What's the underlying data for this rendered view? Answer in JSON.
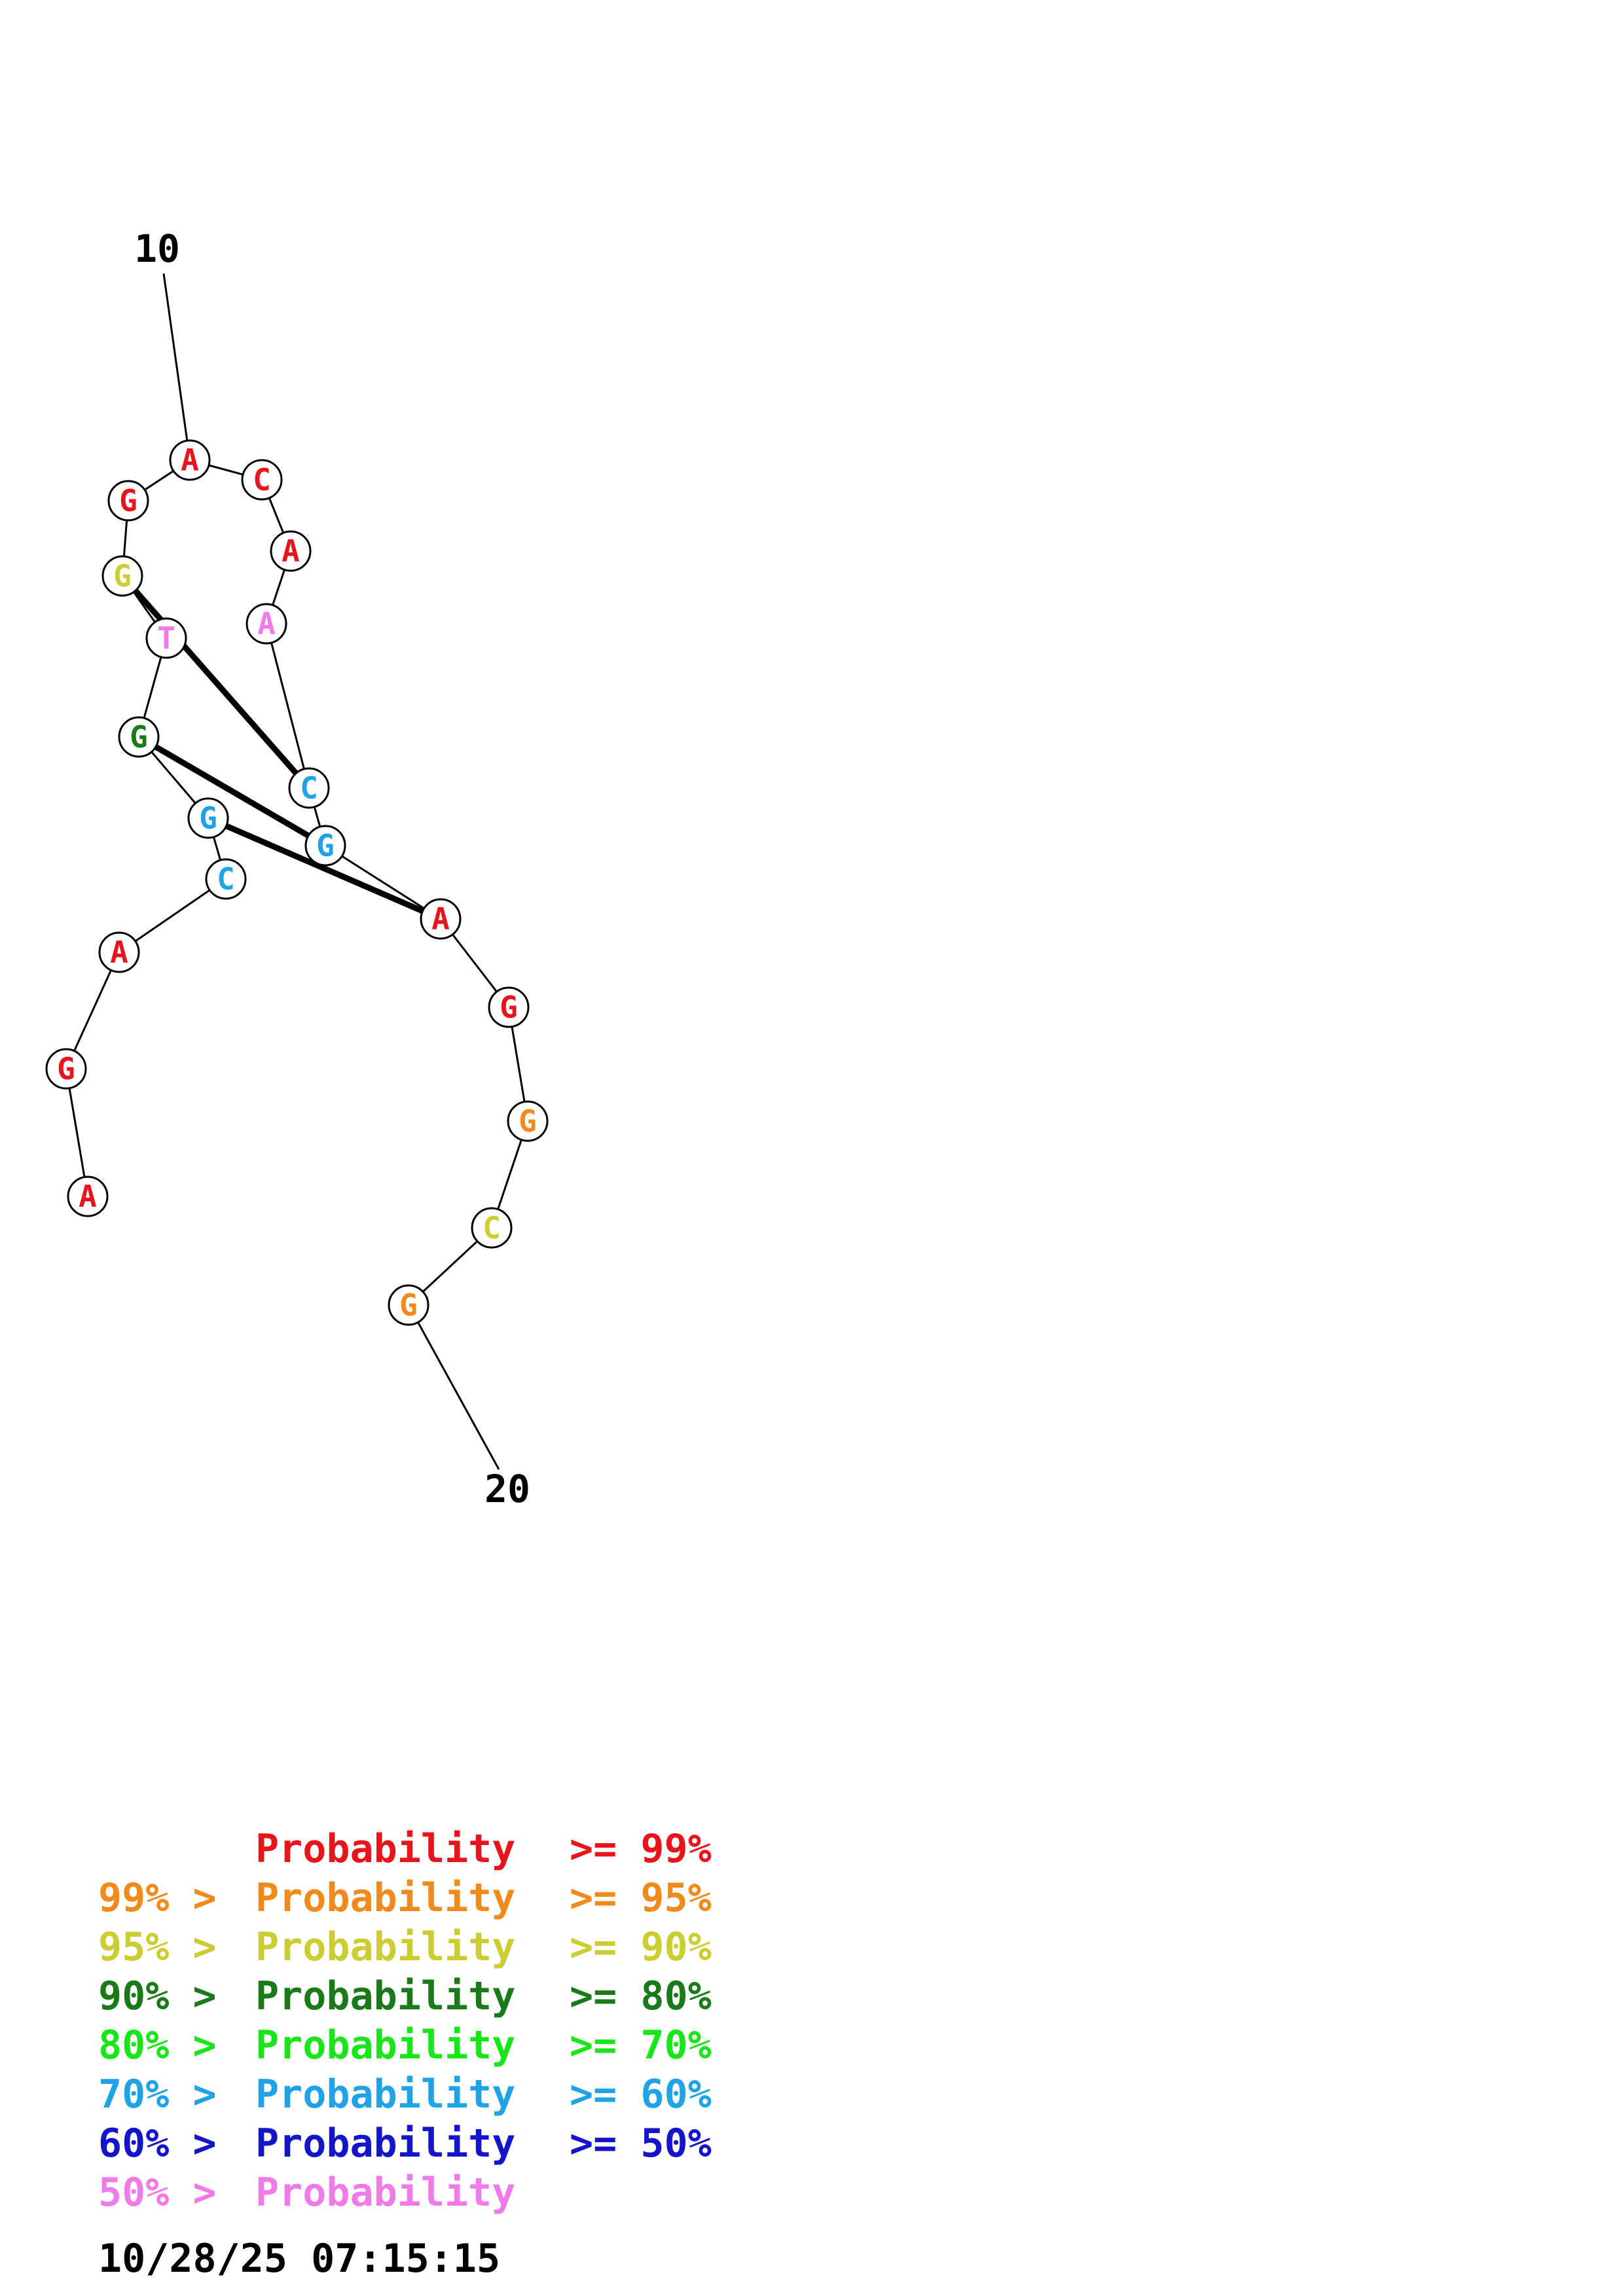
{
  "end_labels": {
    "start": "10",
    "end": "20"
  },
  "nucleotides": [
    {
      "letter": "A",
      "color": "#e8141c"
    },
    {
      "letter": "G",
      "color": "#e8141c"
    },
    {
      "letter": "A",
      "color": "#e8141c"
    },
    {
      "letter": "C",
      "color": "#1fa3e6"
    },
    {
      "letter": "G",
      "color": "#1fa3e6"
    },
    {
      "letter": "G",
      "color": "#1a7a1a"
    },
    {
      "letter": "T",
      "color": "#f07ae8"
    },
    {
      "letter": "G",
      "color": "#cccc33"
    },
    {
      "letter": "G",
      "color": "#e8141c"
    },
    {
      "letter": "A",
      "color": "#e8141c"
    },
    {
      "letter": "C",
      "color": "#e8141c"
    },
    {
      "letter": "A",
      "color": "#e8141c"
    },
    {
      "letter": "A",
      "color": "#f07ae8"
    },
    {
      "letter": "C",
      "color": "#1fa3e6"
    },
    {
      "letter": "G",
      "color": "#1fa3e6"
    },
    {
      "letter": "A",
      "color": "#e8141c"
    },
    {
      "letter": "G",
      "color": "#e8141c"
    },
    {
      "letter": "G",
      "color": "#f08a1a"
    },
    {
      "letter": "C",
      "color": "#cccc33"
    },
    {
      "letter": "G",
      "color": "#f08a1a"
    }
  ],
  "pairs": [
    [
      7,
      13
    ],
    [
      5,
      14
    ],
    [
      4,
      15
    ]
  ],
  "legend": [
    {
      "prefix": "",
      "label": "Probability",
      "suffix": ">= 99%",
      "color": "#e8141c"
    },
    {
      "prefix": "99% >",
      "label": "Probability",
      "suffix": ">= 95%",
      "color": "#f08a1a"
    },
    {
      "prefix": "95% >",
      "label": "Probability",
      "suffix": ">= 90%",
      "color": "#cccc33"
    },
    {
      "prefix": "90% >",
      "label": "Probability",
      "suffix": ">= 80%",
      "color": "#1a7a1a"
    },
    {
      "prefix": "80% >",
      "label": "Probability",
      "suffix": ">= 70%",
      "color": "#19e619"
    },
    {
      "prefix": "70% >",
      "label": "Probability",
      "suffix": ">= 60%",
      "color": "#1fa3e6"
    },
    {
      "prefix": "60% >",
      "label": "Probability",
      "suffix": ">= 50%",
      "color": "#1414c8"
    },
    {
      "prefix": "50% >",
      "label": "Probability",
      "suffix": "",
      "color": "#f07ae8"
    }
  ],
  "timestamp": "10/28/25 07:15:15"
}
